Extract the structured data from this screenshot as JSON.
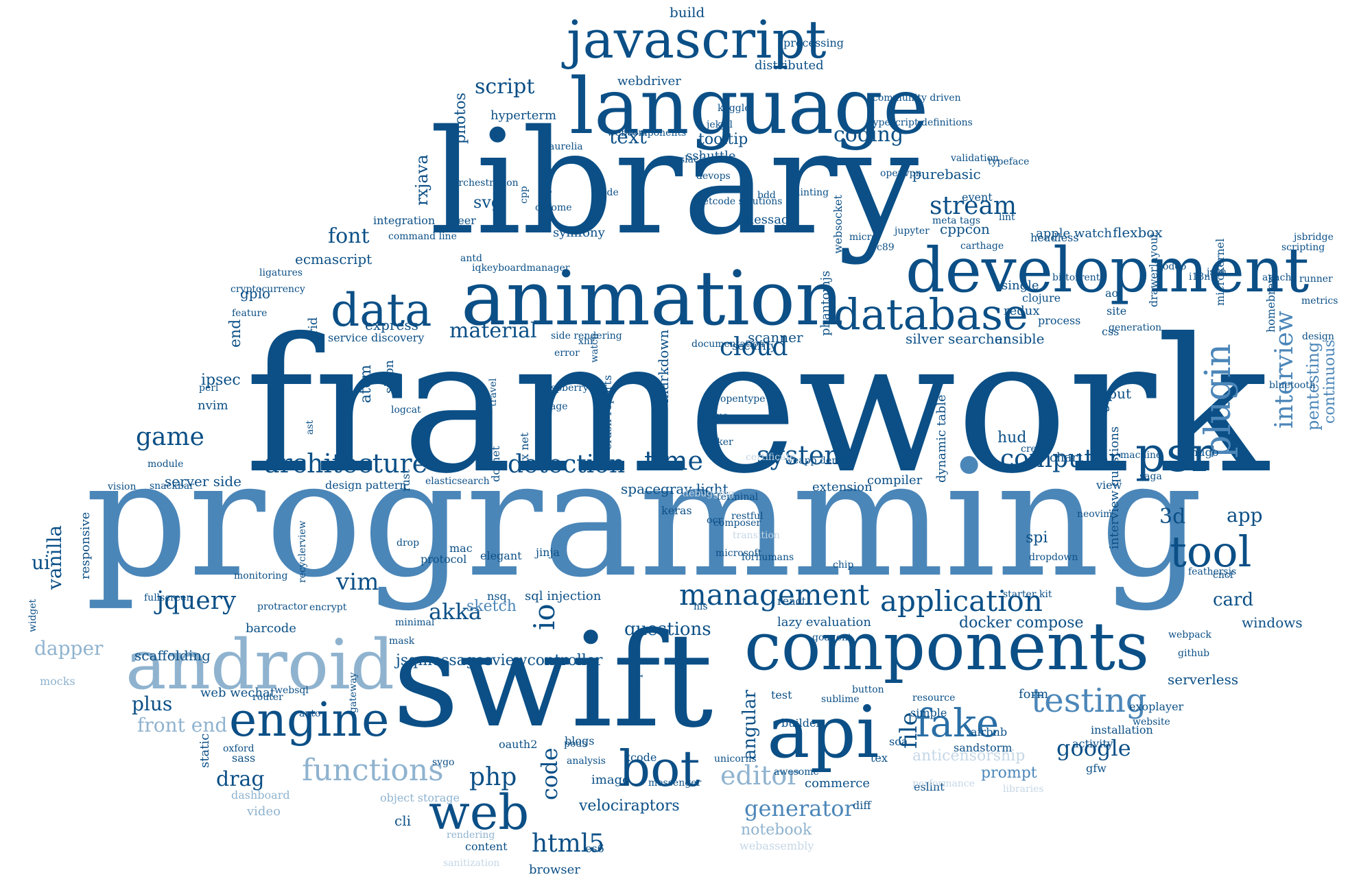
{
  "palette": {
    "dark": "#0b4f86",
    "mid": "#2a6fa6",
    "light": "#4b86b8",
    "pale": "#8fb3cf",
    "faint": "#c5d7e6"
  },
  "words": [
    {
      "text": "framework",
      "color": "dark"
    },
    {
      "text": "programming",
      "color": "light"
    },
    {
      "text": "library",
      "color": "dark"
    },
    {
      "text": "swift",
      "color": "dark"
    },
    {
      "text": "language",
      "color": "dark"
    },
    {
      "text": "animation",
      "color": "dark"
    },
    {
      "text": "development",
      "color": "dark"
    },
    {
      "text": "components",
      "color": "dark"
    },
    {
      "text": "android",
      "color": "pale"
    },
    {
      "text": "api",
      "color": "dark"
    },
    {
      "text": "javascript",
      "color": "dark"
    },
    {
      "text": "database",
      "color": "dark"
    },
    {
      "text": "web",
      "color": "dark"
    },
    {
      "text": "psr",
      "color": "dark"
    },
    {
      "text": "engine",
      "color": "dark"
    },
    {
      "text": "tool",
      "color": "dark"
    },
    {
      "text": "bot",
      "color": "dark"
    },
    {
      "text": "fake",
      "color": "mid"
    },
    {
      "text": "testing",
      "color": "light"
    },
    {
      "text": "data",
      "color": "dark"
    },
    {
      "text": "plugin",
      "color": "light"
    },
    {
      "text": "functions",
      "color": "pale"
    },
    {
      "text": "application",
      "color": "dark"
    },
    {
      "text": "architecture",
      "color": "dark"
    },
    {
      "text": "management",
      "color": "dark"
    },
    {
      "text": "computer",
      "color": "dark"
    },
    {
      "text": "system",
      "color": "dark"
    },
    {
      "text": "editor",
      "color": "pale"
    },
    {
      "text": "html5",
      "color": "dark"
    },
    {
      "text": "stream",
      "color": "dark"
    },
    {
      "text": "detection",
      "color": "dark"
    },
    {
      "text": "time",
      "color": "dark"
    },
    {
      "text": "game",
      "color": "dark"
    },
    {
      "text": "io",
      "color": "dark"
    },
    {
      "text": "interview",
      "color": "light"
    },
    {
      "text": "php",
      "color": "dark"
    },
    {
      "text": "jquery",
      "color": "dark"
    },
    {
      "text": "vim",
      "color": "dark"
    },
    {
      "text": "akka",
      "color": "dark"
    },
    {
      "text": "google",
      "color": "dark"
    },
    {
      "text": "generator",
      "color": "light"
    },
    {
      "text": "code",
      "color": "dark"
    },
    {
      "text": "material",
      "color": "dark"
    },
    {
      "text": "cloud",
      "color": "dark"
    },
    {
      "text": "font",
      "color": "dark"
    },
    {
      "text": "script",
      "color": "dark"
    },
    {
      "text": "coding",
      "color": "dark"
    },
    {
      "text": "text",
      "color": "dark"
    },
    {
      "text": "3d",
      "color": "dark"
    },
    {
      "text": "ui",
      "color": "dark"
    },
    {
      "text": "drag",
      "color": "dark"
    },
    {
      "text": "plus",
      "color": "dark"
    },
    {
      "text": "vanilla",
      "color": "dark"
    },
    {
      "text": "dapper",
      "color": "pale"
    },
    {
      "text": "front end",
      "color": "pale"
    },
    {
      "text": "card",
      "color": "dark"
    },
    {
      "text": "file",
      "color": "dark"
    },
    {
      "text": "pentesting",
      "color": "light"
    },
    {
      "text": "app",
      "color": "dark"
    },
    {
      "text": "anticensorship",
      "color": "faint"
    },
    {
      "text": "angular",
      "color": "dark"
    },
    {
      "text": "questions",
      "color": "dark"
    },
    {
      "text": "sketch",
      "color": "light"
    },
    {
      "text": "notebook",
      "color": "pale"
    },
    {
      "text": "velociraptors",
      "color": "dark"
    },
    {
      "text": "prompt",
      "color": "light"
    },
    {
      "text": "continuous",
      "color": "light"
    },
    {
      "text": "docker compose",
      "color": "dark"
    },
    {
      "text": "sql injection",
      "color": "dark"
    },
    {
      "text": "jsqmessagesviewcontroller",
      "color": "dark"
    },
    {
      "text": "redux",
      "color": "dark"
    },
    {
      "text": "ansible",
      "color": "dark"
    },
    {
      "text": "silver searcher",
      "color": "dark"
    },
    {
      "text": "scanner",
      "color": "dark"
    },
    {
      "text": "markdown",
      "color": "dark"
    },
    {
      "text": "spacegray light",
      "color": "dark"
    },
    {
      "text": "design pattern",
      "color": "dark"
    },
    {
      "text": "ecmascript",
      "color": "dark"
    },
    {
      "text": "symfony",
      "color": "dark"
    },
    {
      "text": "message",
      "color": "dark"
    },
    {
      "text": "webdriver",
      "color": "dark"
    },
    {
      "text": "distributed",
      "color": "dark"
    },
    {
      "text": "tooltip",
      "color": "dark"
    },
    {
      "text": "sshuttle",
      "color": "dark"
    },
    {
      "text": "purebasic",
      "color": "dark"
    },
    {
      "text": "flexbox",
      "color": "dark"
    },
    {
      "text": "apple watch",
      "color": "dark"
    },
    {
      "text": "headless",
      "color": "dark"
    },
    {
      "text": "build",
      "color": "dark"
    },
    {
      "text": "processing",
      "color": "dark"
    },
    {
      "text": "hyperterm",
      "color": "dark"
    },
    {
      "text": "photos",
      "color": "dark"
    },
    {
      "text": "rxjava",
      "color": "dark"
    },
    {
      "text": "svg",
      "color": "dark"
    },
    {
      "text": "peer",
      "color": "dark"
    },
    {
      "text": "integration",
      "color": "dark"
    },
    {
      "text": "gpio",
      "color": "dark"
    },
    {
      "text": "end",
      "color": "dark"
    },
    {
      "text": "ipsec",
      "color": "dark"
    },
    {
      "text": "nvim",
      "color": "dark"
    },
    {
      "text": "server side",
      "color": "dark"
    },
    {
      "text": "atom",
      "color": "dark"
    },
    {
      "text": "express",
      "color": "dark"
    },
    {
      "text": "phantomjs",
      "color": "dark"
    },
    {
      "text": "websocket",
      "color": "dark"
    },
    {
      "text": "cppcon",
      "color": "dark"
    },
    {
      "text": "hud",
      "color": "dark"
    },
    {
      "text": "chart",
      "color": "dark"
    },
    {
      "text": "extension",
      "color": "dark"
    },
    {
      "text": "compiler",
      "color": "dark"
    },
    {
      "text": "input",
      "color": "dark"
    },
    {
      "text": "js",
      "color": "dark"
    },
    {
      "text": "view",
      "color": "dark"
    },
    {
      "text": "spi",
      "color": "dark"
    },
    {
      "text": "windows",
      "color": "dark"
    },
    {
      "text": "serverless",
      "color": "dark"
    },
    {
      "text": "form",
      "color": "dark"
    },
    {
      "text": "exoplayer",
      "color": "dark"
    },
    {
      "text": "installation",
      "color": "dark"
    },
    {
      "text": "barcode",
      "color": "dark"
    },
    {
      "text": "scaffolding",
      "color": "dark"
    },
    {
      "text": "responsive",
      "color": "dark"
    },
    {
      "text": "web wechat",
      "color": "dark"
    },
    {
      "text": "mocks",
      "color": "pale"
    },
    {
      "text": "sass",
      "color": "dark"
    },
    {
      "text": "static",
      "color": "dark"
    },
    {
      "text": "video",
      "color": "pale"
    },
    {
      "text": "dashboard",
      "color": "pale"
    },
    {
      "text": "object storage",
      "color": "pale"
    },
    {
      "text": "content",
      "color": "dark"
    },
    {
      "text": "browser",
      "color": "dark"
    },
    {
      "text": "cli",
      "color": "dark"
    },
    {
      "text": "image",
      "color": "dark"
    },
    {
      "text": "analysis",
      "color": "dark"
    },
    {
      "text": "pods",
      "color": "dark"
    },
    {
      "text": "messenger",
      "color": "dark"
    },
    {
      "text": "unicorns",
      "color": "dark"
    },
    {
      "text": "commerce",
      "color": "dark"
    },
    {
      "text": "awesome",
      "color": "dark"
    },
    {
      "text": "test",
      "color": "dark"
    },
    {
      "text": "button",
      "color": "dark"
    },
    {
      "text": "sublime",
      "color": "dark"
    },
    {
      "text": "goagent",
      "color": "dark"
    },
    {
      "text": "lazy evaluation",
      "color": "dark"
    },
    {
      "text": "dynamic table",
      "color": "dark"
    },
    {
      "text": "interview questions",
      "color": "dark"
    },
    {
      "text": "react",
      "color": "dark"
    },
    {
      "text": "keras",
      "color": "dark"
    },
    {
      "text": "elasticsearch",
      "color": "dark"
    },
    {
      "text": "terminal",
      "color": "dark"
    },
    {
      "text": "restful",
      "color": "dark"
    },
    {
      "text": "docker",
      "color": "dark"
    },
    {
      "text": "queue",
      "color": "dark"
    },
    {
      "text": "opentype",
      "color": "dark"
    },
    {
      "text": "documentation",
      "color": "dark"
    },
    {
      "text": "security",
      "color": "dark"
    },
    {
      "text": "process",
      "color": "dark"
    },
    {
      "text": "css",
      "color": "dark"
    },
    {
      "text": "site",
      "color": "dark"
    },
    {
      "text": "aot",
      "color": "dark"
    },
    {
      "text": "clojure",
      "color": "dark"
    },
    {
      "text": "single",
      "color": "dark"
    },
    {
      "text": "grid",
      "color": "dark"
    },
    {
      "text": "drawer",
      "color": "dark"
    },
    {
      "text": "ast",
      "color": "dark"
    },
    {
      "text": "sinon",
      "color": "dark"
    },
    {
      "text": "logcat",
      "color": "dark"
    },
    {
      "text": "page",
      "color": "dark"
    },
    {
      "text": "raspberry pi",
      "color": "dark"
    },
    {
      "text": "crash reports",
      "color": "dark"
    },
    {
      "text": "xx net",
      "color": "dark"
    },
    {
      "text": "rust",
      "color": "dark"
    },
    {
      "text": "dotnet",
      "color": "dark"
    },
    {
      "text": "mac",
      "color": "dark"
    },
    {
      "text": "elegant",
      "color": "dark"
    },
    {
      "text": "protocol",
      "color": "dark"
    },
    {
      "text": "nsq",
      "color": "dark"
    },
    {
      "text": "jinja",
      "color": "dark"
    },
    {
      "text": "blogs",
      "color": "dark"
    },
    {
      "text": "oauth2",
      "color": "dark"
    },
    {
      "text": "builder",
      "color": "dark"
    },
    {
      "text": "es6",
      "color": "dark"
    },
    {
      "text": "xcode",
      "color": "dark"
    },
    {
      "text": "tips",
      "color": "dark"
    },
    {
      "text": "soa",
      "color": "dark"
    },
    {
      "text": "eslint",
      "color": "dark"
    },
    {
      "text": "diff",
      "color": "dark"
    },
    {
      "text": "tex",
      "color": "dark"
    },
    {
      "text": "sandstorm",
      "color": "dark"
    },
    {
      "text": "resource",
      "color": "dark"
    },
    {
      "text": "simple",
      "color": "dark"
    },
    {
      "text": "airbnb",
      "color": "dark"
    },
    {
      "text": "gfw",
      "color": "dark"
    },
    {
      "text": "activity",
      "color": "dark"
    },
    {
      "text": "website",
      "color": "dark"
    },
    {
      "text": "webpack",
      "color": "dark"
    },
    {
      "text": "github",
      "color": "dark"
    },
    {
      "text": "feathersjs",
      "color": "dark"
    },
    {
      "text": "cncf",
      "color": "dark"
    },
    {
      "text": "hugo",
      "color": "dark"
    },
    {
      "text": "neovim",
      "color": "dark"
    },
    {
      "text": "starter kit",
      "color": "dark"
    },
    {
      "text": "dropdown",
      "color": "dark"
    },
    {
      "text": "credit",
      "color": "dark"
    },
    {
      "text": "saga",
      "color": "dark"
    },
    {
      "text": "machine",
      "color": "dark"
    },
    {
      "text": "design",
      "color": "dark"
    },
    {
      "text": "bluetooth",
      "color": "dark"
    },
    {
      "text": "runner",
      "color": "dark"
    },
    {
      "text": "apache",
      "color": "dark"
    },
    {
      "text": "scripting",
      "color": "dark"
    },
    {
      "text": "jsbridge",
      "color": "dark"
    },
    {
      "text": "metrics",
      "color": "dark"
    },
    {
      "text": "homebrew",
      "color": "dark"
    },
    {
      "text": "microkernel",
      "color": "dark"
    },
    {
      "text": "odoo",
      "color": "dark"
    },
    {
      "text": "json",
      "color": "dark"
    },
    {
      "text": "i18n",
      "color": "dark"
    },
    {
      "text": "drawerlayout",
      "color": "dark"
    },
    {
      "text": "generation",
      "color": "dark"
    },
    {
      "text": "bittorrent",
      "color": "dark"
    },
    {
      "text": "carthage",
      "color": "dark"
    },
    {
      "text": "c89",
      "color": "dark"
    },
    {
      "text": "micro",
      "color": "dark"
    },
    {
      "text": "jupyter",
      "color": "dark"
    },
    {
      "text": "meta tags",
      "color": "dark"
    },
    {
      "text": "lint",
      "color": "dark"
    },
    {
      "text": "event",
      "color": "dark"
    },
    {
      "text": "typeface",
      "color": "dark"
    },
    {
      "text": "validation",
      "color": "dark"
    },
    {
      "text": "openvpn",
      "color": "dark"
    },
    {
      "text": "linting",
      "color": "dark"
    },
    {
      "text": "bdd",
      "color": "dark"
    },
    {
      "text": "leetcode solutions",
      "color": "dark"
    },
    {
      "text": "devops",
      "color": "dark"
    },
    {
      "text": "slack",
      "color": "dark"
    },
    {
      "text": "kaggle",
      "color": "dark"
    },
    {
      "text": "typescript definitions",
      "color": "dark"
    },
    {
      "text": "community driven",
      "color": "dark"
    },
    {
      "text": "jekyll",
      "color": "dark"
    },
    {
      "text": "aurelia",
      "color": "dark"
    },
    {
      "text": "webcomponents",
      "color": "dark"
    },
    {
      "text": "ide",
      "color": "dark"
    },
    {
      "text": "cpp",
      "color": "dark"
    },
    {
      "text": "jruby",
      "color": "dark"
    },
    {
      "text": "chrome",
      "color": "dark"
    },
    {
      "text": "antd",
      "color": "dark"
    },
    {
      "text": "iqkeyboardmanager",
      "color": "dark"
    },
    {
      "text": "orchestration",
      "color": "dark"
    },
    {
      "text": "command line",
      "color": "dark"
    },
    {
      "text": "ligatures",
      "color": "dark"
    },
    {
      "text": "feature",
      "color": "dark"
    },
    {
      "text": "cryptocurrency",
      "color": "dark"
    },
    {
      "text": "service discovery",
      "color": "dark"
    },
    {
      "text": "perl",
      "color": "dark"
    },
    {
      "text": "module",
      "color": "dark"
    },
    {
      "text": "snackbar",
      "color": "dark"
    },
    {
      "text": "vision",
      "color": "dark"
    },
    {
      "text": "widget",
      "color": "dark"
    },
    {
      "text": "fullscreen",
      "color": "dark"
    },
    {
      "text": "monitoring",
      "color": "dark"
    },
    {
      "text": "recyclerview",
      "color": "dark"
    },
    {
      "text": "encrypt",
      "color": "dark"
    },
    {
      "text": "protractor",
      "color": "dark"
    },
    {
      "text": "router",
      "color": "dark"
    },
    {
      "text": "websql",
      "color": "dark"
    },
    {
      "text": "auto",
      "color": "dark"
    },
    {
      "text": "oxford",
      "color": "dark"
    },
    {
      "text": "gateway",
      "color": "dark"
    },
    {
      "text": "svgo",
      "color": "dark"
    },
    {
      "text": "minimal",
      "color": "dark"
    },
    {
      "text": "mask",
      "color": "dark"
    },
    {
      "text": "drop",
      "color": "dark"
    },
    {
      "text": "hls",
      "color": "dark"
    },
    {
      "text": "chip",
      "color": "dark"
    },
    {
      "text": "forhumans",
      "color": "dark"
    },
    {
      "text": "microsoft",
      "color": "dark"
    },
    {
      "text": "composer",
      "color": "dark"
    },
    {
      "text": "weapp demo",
      "color": "dark"
    },
    {
      "text": "side rendering",
      "color": "dark"
    },
    {
      "text": "error",
      "color": "dark"
    },
    {
      "text": "xhr",
      "color": "dark"
    },
    {
      "text": "watch",
      "color": "dark"
    },
    {
      "text": "travel",
      "color": "dark"
    },
    {
      "text": "ocr",
      "color": "dark"
    },
    {
      "text": "transition",
      "color": "faint"
    },
    {
      "text": "certificate",
      "color": "faint"
    },
    {
      "text": "debugging",
      "color": "faint"
    },
    {
      "text": "sanitization",
      "color": "faint"
    },
    {
      "text": "rendering",
      "color": "pale"
    },
    {
      "text": "webassembly",
      "color": "faint"
    },
    {
      "text": "performance",
      "color": "faint"
    },
    {
      "text": "libraries",
      "color": "faint"
    }
  ]
}
